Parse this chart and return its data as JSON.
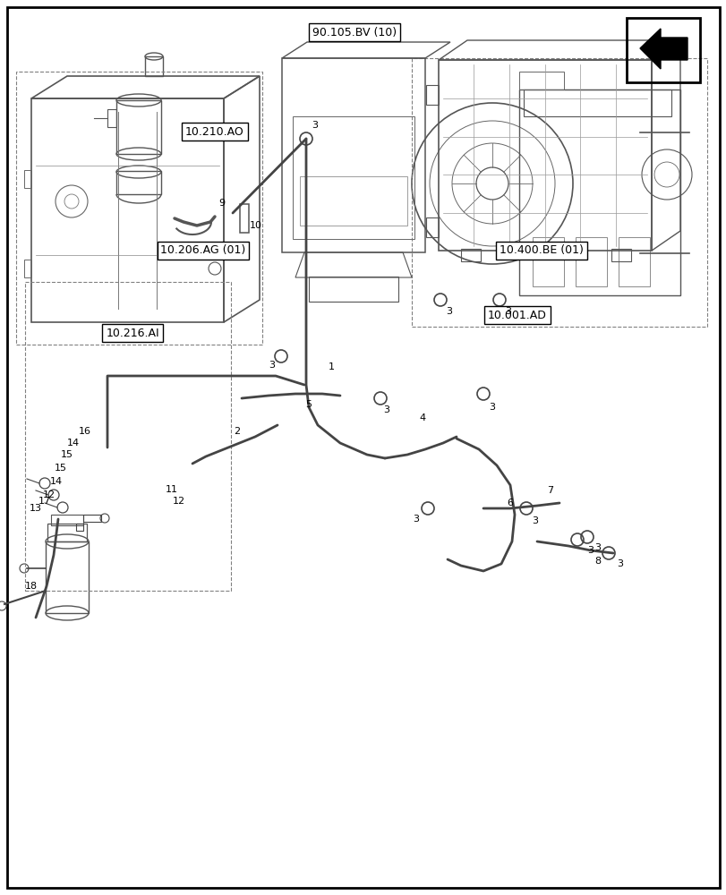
{
  "bg_color": "#ffffff",
  "border_color": "#333333",
  "labels": {
    "ref_10216AI": "10.216.AI",
    "ref_10001AD": "10.001.AD",
    "ref_10206AG": "10.206.AG (01)",
    "ref_10210AO": "10.210.AO",
    "ref_10400BE": "10.400.BE (01)",
    "ref_90105BV": "90.105.BV (10)"
  },
  "title_font_size": 9,
  "label_font_size": 8,
  "number_font_size": 8
}
